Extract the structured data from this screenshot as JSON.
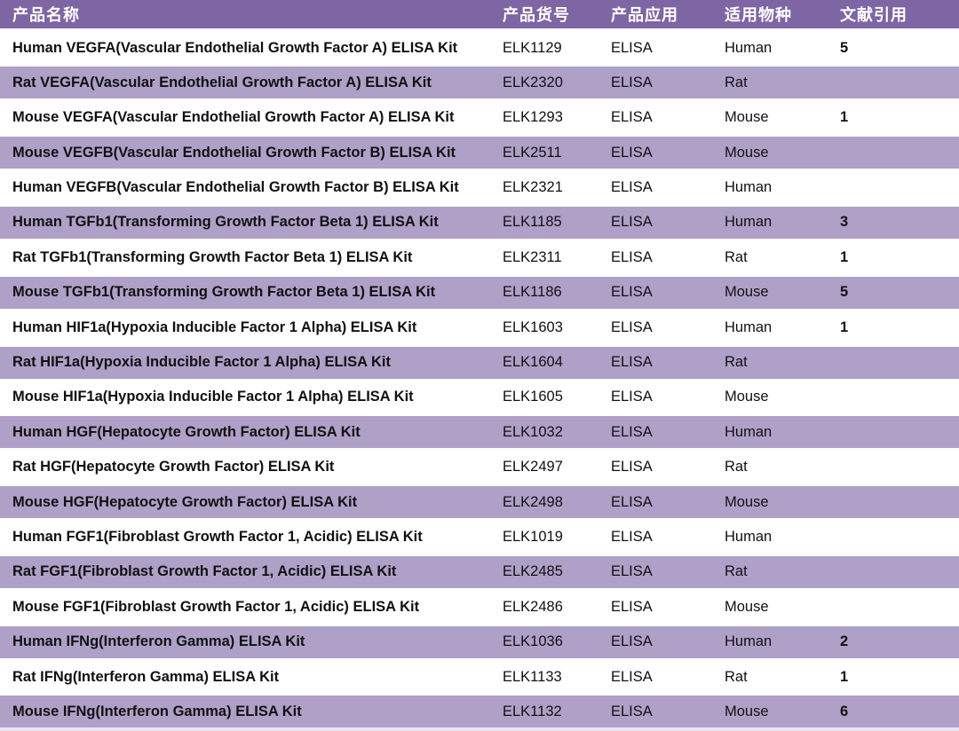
{
  "table": {
    "columns": [
      "产品名称",
      "产品货号",
      "产品应用",
      "适用物种",
      "文献引用"
    ],
    "rows": [
      {
        "name": "Human VEGFA(Vascular Endothelial Growth Factor A) ELISA Kit",
        "code": "ELK1129",
        "application": "ELISA",
        "species": "Human",
        "citations": "5"
      },
      {
        "name": "Rat VEGFA(Vascular Endothelial Growth Factor A) ELISA Kit",
        "code": "ELK2320",
        "application": "ELISA",
        "species": "Rat",
        "citations": ""
      },
      {
        "name": "Mouse VEGFA(Vascular Endothelial Growth Factor A) ELISA Kit",
        "code": "ELK1293",
        "application": "ELISA",
        "species": "Mouse",
        "citations": "1"
      },
      {
        "name": "Mouse VEGFB(Vascular Endothelial Growth Factor B) ELISA Kit",
        "code": "ELK2511",
        "application": "ELISA",
        "species": "Mouse",
        "citations": ""
      },
      {
        "name": "Human VEGFB(Vascular Endothelial Growth Factor B) ELISA Kit",
        "code": "ELK2321",
        "application": "ELISA",
        "species": "Human",
        "citations": ""
      },
      {
        "name": "Human TGFb1(Transforming Growth Factor Beta 1) ELISA Kit",
        "code": "ELK1185",
        "application": "ELISA",
        "species": "Human",
        "citations": "3"
      },
      {
        "name": "Rat TGFb1(Transforming Growth Factor Beta 1) ELISA Kit",
        "code": "ELK2311",
        "application": "ELISA",
        "species": "Rat",
        "citations": "1"
      },
      {
        "name": "Mouse TGFb1(Transforming Growth Factor Beta 1) ELISA Kit",
        "code": "ELK1186",
        "application": "ELISA",
        "species": "Mouse",
        "citations": "5"
      },
      {
        "name": "Human HIF1a(Hypoxia Inducible Factor 1 Alpha) ELISA Kit",
        "code": "ELK1603",
        "application": "ELISA",
        "species": "Human",
        "citations": "1"
      },
      {
        "name": "Rat HIF1a(Hypoxia Inducible Factor 1 Alpha) ELISA Kit",
        "code": "ELK1604",
        "application": "ELISA",
        "species": "Rat",
        "citations": ""
      },
      {
        "name": "Mouse HIF1a(Hypoxia Inducible Factor 1 Alpha) ELISA Kit",
        "code": "ELK1605",
        "application": "ELISA",
        "species": "Mouse",
        "citations": ""
      },
      {
        "name": "Human HGF(Hepatocyte Growth Factor) ELISA Kit",
        "code": "ELK1032",
        "application": "ELISA",
        "species": "Human",
        "citations": ""
      },
      {
        "name": "Rat HGF(Hepatocyte Growth Factor) ELISA Kit",
        "code": "ELK2497",
        "application": "ELISA",
        "species": "Rat",
        "citations": ""
      },
      {
        "name": "Mouse HGF(Hepatocyte Growth Factor) ELISA Kit",
        "code": "ELK2498",
        "application": "ELISA",
        "species": "Mouse",
        "citations": ""
      },
      {
        "name": "Human FGF1(Fibroblast Growth Factor 1, Acidic) ELISA Kit",
        "code": "ELK1019",
        "application": "ELISA",
        "species": "Human",
        "citations": ""
      },
      {
        "name": "Rat FGF1(Fibroblast Growth Factor 1, Acidic) ELISA Kit",
        "code": "ELK2485",
        "application": "ELISA",
        "species": "Rat",
        "citations": ""
      },
      {
        "name": "Mouse FGF1(Fibroblast Growth Factor 1, Acidic) ELISA Kit",
        "code": "ELK2486",
        "application": "ELISA",
        "species": "Mouse",
        "citations": ""
      },
      {
        "name": "Human IFNg(Interferon Gamma) ELISA Kit",
        "code": "ELK1036",
        "application": "ELISA",
        "species": "Human",
        "citations": "2"
      },
      {
        "name": "Rat IFNg(Interferon Gamma) ELISA Kit",
        "code": "ELK1133",
        "application": "ELISA",
        "species": "Rat",
        "citations": "1"
      },
      {
        "name": "Mouse IFNg(Interferon Gamma) ELISA Kit",
        "code": "ELK1132",
        "application": "ELISA",
        "species": "Mouse",
        "citations": "6"
      }
    ]
  },
  "colors": {
    "header_bg": "#7E65A3",
    "header_text": "#FFFFFF",
    "alt_row_bg": "#AFA0C8",
    "body_text": "#111111",
    "bottom_strip": "#E8E6EC"
  }
}
